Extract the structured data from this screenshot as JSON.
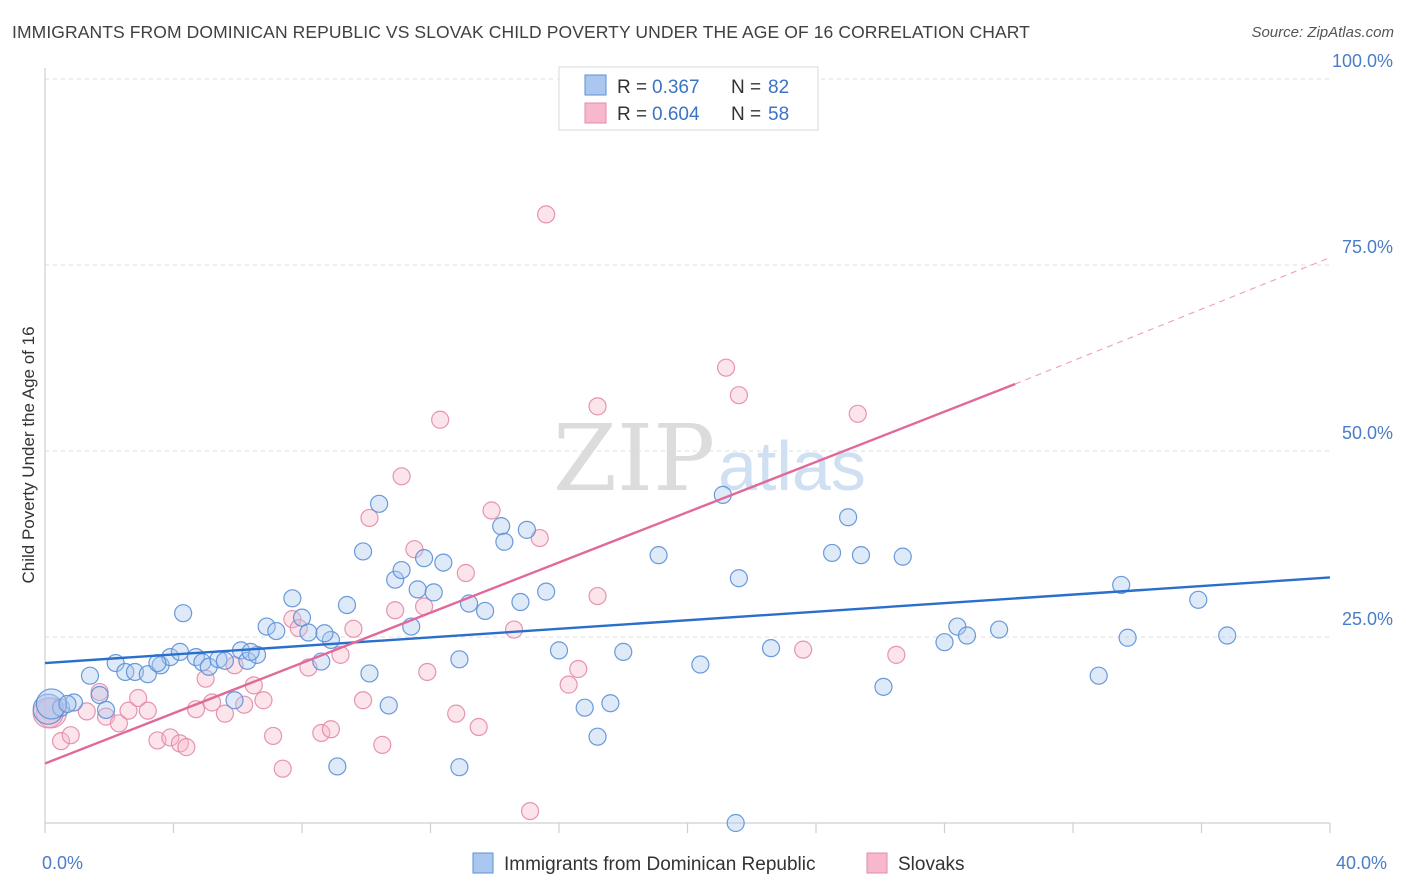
{
  "header": {
    "title": "IMMIGRANTS FROM DOMINICAN REPUBLIC VS SLOVAK CHILD POVERTY UNDER THE AGE OF 16 CORRELATION CHART",
    "source": "Source: ZipAtlas.com"
  },
  "watermark": {
    "zip": "ZIP",
    "atlas": "atlas"
  },
  "legend": {
    "r_label": "R =",
    "n_label": "N =",
    "rows": [
      {
        "r": "0.367",
        "n": "82"
      },
      {
        "r": "0.604",
        "n": "58"
      }
    ]
  },
  "colors": {
    "blue_fill": "#aac8ef",
    "blue_stroke": "#5b8fd6",
    "blue_line": "#2a6fcc",
    "pink_fill": "#f7b8cb",
    "pink_stroke": "#e38aa8",
    "pink_line": "#e0699a"
  },
  "chart_data": {
    "type": "scatter",
    "xlabel": "",
    "ylabel": "Child Poverty Under the Age of 16",
    "xlim": [
      0,
      40
    ],
    "ylim": [
      0,
      100
    ],
    "x_tick_labels": [
      "0.0%",
      "40.0%"
    ],
    "y_ticks": [
      25,
      50,
      75,
      100
    ],
    "y_tick_labels": [
      "25.0%",
      "50.0%",
      "75.0%",
      "100.0%"
    ],
    "grid": true,
    "legend_position": "top-center",
    "series": [
      {
        "name": "Immigrants from Dominican Republic",
        "color": "blue",
        "trend": {
          "x0": 0,
          "y0": 21.5,
          "x1": 40,
          "y1": 33.0
        },
        "points": [
          [
            0.1,
            15.3
          ],
          [
            0.5,
            15.5
          ],
          [
            0.9,
            16.2
          ],
          [
            1.4,
            19.8
          ],
          [
            1.7,
            17.2
          ],
          [
            1.9,
            15.2
          ],
          [
            2.2,
            21.5
          ],
          [
            2.5,
            20.3
          ],
          [
            2.8,
            20.3
          ],
          [
            3.2,
            20.0
          ],
          [
            3.6,
            21.2
          ],
          [
            3.9,
            22.3
          ],
          [
            4.2,
            23.0
          ],
          [
            4.3,
            28.2
          ],
          [
            4.7,
            22.3
          ],
          [
            4.9,
            21.6
          ],
          [
            5.1,
            21.0
          ],
          [
            5.4,
            22.0
          ],
          [
            5.6,
            21.8
          ],
          [
            5.9,
            16.5
          ],
          [
            6.1,
            23.2
          ],
          [
            6.3,
            21.8
          ],
          [
            6.6,
            22.6
          ],
          [
            6.9,
            26.4
          ],
          [
            7.2,
            25.8
          ],
          [
            7.7,
            30.2
          ],
          [
            8.0,
            27.6
          ],
          [
            8.2,
            25.6
          ],
          [
            8.6,
            21.7
          ],
          [
            8.9,
            24.6
          ],
          [
            9.1,
            7.6
          ],
          [
            9.4,
            29.3
          ],
          [
            9.9,
            36.5
          ],
          [
            10.1,
            20.1
          ],
          [
            10.4,
            42.9
          ],
          [
            10.7,
            15.8
          ],
          [
            10.9,
            32.7
          ],
          [
            11.1,
            34.0
          ],
          [
            11.4,
            26.4
          ],
          [
            11.6,
            31.4
          ],
          [
            11.8,
            35.6
          ],
          [
            12.1,
            31.0
          ],
          [
            12.4,
            35.0
          ],
          [
            12.9,
            7.5
          ],
          [
            12.9,
            22.0
          ],
          [
            13.2,
            29.5
          ],
          [
            13.7,
            28.5
          ],
          [
            14.2,
            39.9
          ],
          [
            14.3,
            37.8
          ],
          [
            14.8,
            29.7
          ],
          [
            15.0,
            39.4
          ],
          [
            15.6,
            31.1
          ],
          [
            16.0,
            23.2
          ],
          [
            16.8,
            15.5
          ],
          [
            17.2,
            11.6
          ],
          [
            17.6,
            16.1
          ],
          [
            18.0,
            23.0
          ],
          [
            19.1,
            36.0
          ],
          [
            20.4,
            21.3
          ],
          [
            21.1,
            44.1
          ],
          [
            21.6,
            32.9
          ],
          [
            22.6,
            23.5
          ],
          [
            24.5,
            36.3
          ],
          [
            25.0,
            41.1
          ],
          [
            25.4,
            36.0
          ],
          [
            26.1,
            18.3
          ],
          [
            26.7,
            35.8
          ],
          [
            28.0,
            24.3
          ],
          [
            28.4,
            26.4
          ],
          [
            28.7,
            25.2
          ],
          [
            29.7,
            26.0
          ],
          [
            32.8,
            19.8
          ],
          [
            33.5,
            32.0
          ],
          [
            33.7,
            24.9
          ],
          [
            35.9,
            30.0
          ],
          [
            36.8,
            25.2
          ],
          [
            21.5,
            0.0
          ],
          [
            0.2,
            16.0
          ],
          [
            0.7,
            16.0
          ],
          [
            3.5,
            21.5
          ],
          [
            6.4,
            23.0
          ],
          [
            8.7,
            25.5
          ]
        ]
      },
      {
        "name": "Slovaks",
        "color": "pink",
        "trend": {
          "x0": 0,
          "y0": 8.0,
          "x1": 30.2,
          "y1": 59.0,
          "dash_x1": 40,
          "dash_y1": 76.0
        },
        "points": [
          [
            0.2,
            14.8
          ],
          [
            0.5,
            11.0
          ],
          [
            0.8,
            11.8
          ],
          [
            1.3,
            15.0
          ],
          [
            1.7,
            17.6
          ],
          [
            1.9,
            14.3
          ],
          [
            2.3,
            13.4
          ],
          [
            2.6,
            15.1
          ],
          [
            2.9,
            16.8
          ],
          [
            3.2,
            15.1
          ],
          [
            3.5,
            11.1
          ],
          [
            3.9,
            11.5
          ],
          [
            4.2,
            10.7
          ],
          [
            4.4,
            10.2
          ],
          [
            4.7,
            15.3
          ],
          [
            5.0,
            19.4
          ],
          [
            5.2,
            16.2
          ],
          [
            5.6,
            14.7
          ],
          [
            5.9,
            21.2
          ],
          [
            6.2,
            15.9
          ],
          [
            6.5,
            18.5
          ],
          [
            6.8,
            16.5
          ],
          [
            7.1,
            11.7
          ],
          [
            7.4,
            7.3
          ],
          [
            7.7,
            27.4
          ],
          [
            7.9,
            26.2
          ],
          [
            8.2,
            20.9
          ],
          [
            8.6,
            12.1
          ],
          [
            8.9,
            12.6
          ],
          [
            9.2,
            22.6
          ],
          [
            9.6,
            26.1
          ],
          [
            9.9,
            16.5
          ],
          [
            10.1,
            41.0
          ],
          [
            10.5,
            10.5
          ],
          [
            10.9,
            28.6
          ],
          [
            11.1,
            46.6
          ],
          [
            11.5,
            36.8
          ],
          [
            11.8,
            29.1
          ],
          [
            11.9,
            20.3
          ],
          [
            12.3,
            54.2
          ],
          [
            12.8,
            14.7
          ],
          [
            13.1,
            33.6
          ],
          [
            13.5,
            12.9
          ],
          [
            13.9,
            42.0
          ],
          [
            14.6,
            26.0
          ],
          [
            15.4,
            38.3
          ],
          [
            15.6,
            81.8
          ],
          [
            16.3,
            18.6
          ],
          [
            16.6,
            20.7
          ],
          [
            17.2,
            56.0
          ],
          [
            17.2,
            30.5
          ],
          [
            21.2,
            61.2
          ],
          [
            21.6,
            57.5
          ],
          [
            23.6,
            23.3
          ],
          [
            25.3,
            55.0
          ],
          [
            26.5,
            22.6
          ],
          [
            15.1,
            1.6
          ],
          [
            0.1,
            14.8
          ]
        ]
      }
    ]
  },
  "bottom_legend": {
    "items": [
      {
        "label": "Immigrants from Dominican Republic"
      },
      {
        "label": "Slovaks"
      }
    ]
  }
}
